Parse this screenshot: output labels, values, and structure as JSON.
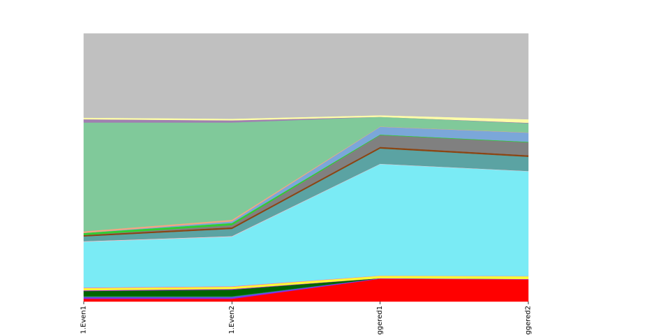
{
  "chart_data": {
    "type": "area",
    "stacked": true,
    "normalized": true,
    "categories": [
      "1.Even1",
      "1.Even2",
      "ggered1",
      "ggered2"
    ],
    "ylim": [
      0,
      1
    ],
    "grid": false,
    "legend": "none",
    "series": [
      {
        "color": "#ff0000",
        "values": [
          0.01,
          0.01,
          0.085,
          0.082
        ]
      },
      {
        "color": "#8a2be2",
        "values": [
          0.005,
          0.005,
          0.002,
          0.002
        ]
      },
      {
        "color": "#4169e1",
        "values": [
          0.003,
          0.003,
          0.0,
          0.0
        ]
      },
      {
        "color": "#228b22",
        "values": [
          0.003,
          0.002,
          0.0,
          0.0
        ]
      },
      {
        "color": "#006400",
        "values": [
          0.018,
          0.024,
          0.0,
          0.0
        ]
      },
      {
        "color": "#9932cc",
        "values": [
          0.003,
          0.003,
          0.0,
          0.0
        ]
      },
      {
        "color": "#ffff33",
        "values": [
          0.008,
          0.008,
          0.009,
          0.01
        ]
      },
      {
        "color": "#ff69b4",
        "values": [
          0.002,
          0.002,
          0.001,
          0.001
        ]
      },
      {
        "color": "#7aebf5",
        "values": [
          0.171,
          0.185,
          0.416,
          0.391
        ]
      },
      {
        "color": "#ffc0cb",
        "values": [
          0.002,
          0.002,
          0.001,
          0.001
        ]
      },
      {
        "color": "#5ba3a3",
        "values": [
          0.018,
          0.027,
          0.057,
          0.053
        ]
      },
      {
        "color": "#8b4513",
        "values": [
          0.005,
          0.006,
          0.006,
          0.006
        ]
      },
      {
        "color": "#808080",
        "values": [
          0.0,
          0.008,
          0.044,
          0.048
        ]
      },
      {
        "color": "#32cd32",
        "values": [
          0.008,
          0.008,
          0.002,
          0.002
        ]
      },
      {
        "color": "#7ba7d9",
        "values": [
          0.0,
          0.006,
          0.029,
          0.034
        ]
      },
      {
        "color": "#f4a582",
        "values": [
          0.006,
          0.006,
          0.001,
          0.001
        ]
      },
      {
        "color": "#80c99a",
        "values": [
          0.406,
          0.363,
          0.036,
          0.034
        ]
      },
      {
        "color": "#a080b0",
        "values": [
          0.012,
          0.008,
          0.0,
          0.002
        ]
      },
      {
        "color": "#ffffa8",
        "values": [
          0.006,
          0.006,
          0.006,
          0.013
        ]
      },
      {
        "color": "#c0c0c0",
        "values": [
          0.314,
          0.318,
          0.305,
          0.32
        ]
      }
    ]
  }
}
